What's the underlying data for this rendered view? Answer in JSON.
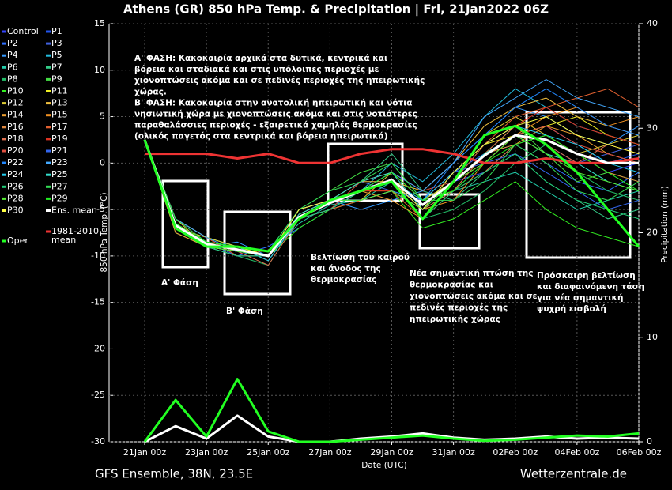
{
  "chart_data": {
    "type": "line",
    "title": "Athens  (GR)  850 hPa Temp. & Precipitation | Fri, 21Jan2022 06Z",
    "footer_left": "GFS Ensemble, 38N, 23.5E",
    "footer_right": "Wetterzentrale.de",
    "ylabel": "850 hPa Temp. (°C)",
    "y2label": "Precipitation (mm)",
    "xlabel": "Date (UTC)",
    "xlim": [
      0,
      16
    ],
    "xticks": [
      {
        "value": 0,
        "label": "21Jan 00z"
      },
      {
        "value": 2,
        "label": "23Jan 00z"
      },
      {
        "value": 4,
        "label": "25Jan 00z"
      },
      {
        "value": 6,
        "label": "27Jan 00z"
      },
      {
        "value": 8,
        "label": "29Jan 00z"
      },
      {
        "value": 10,
        "label": "31Jan 00z"
      },
      {
        "value": 12,
        "label": "02Feb 00z"
      },
      {
        "value": 14,
        "label": "04Feb 00z"
      },
      {
        "value": 16,
        "label": "06Feb 00z"
      }
    ],
    "ylim": [
      -30,
      15
    ],
    "yticks": [
      15,
      10,
      5,
      0,
      -5,
      -10,
      -15,
      -20,
      -25,
      -30
    ],
    "y2lim": [
      0,
      40
    ],
    "y2ticks": [
      40,
      30,
      20,
      10,
      0
    ],
    "grid": true,
    "x": [
      0,
      1,
      2,
      3,
      4,
      5,
      6,
      7,
      8,
      9,
      10,
      11,
      12,
      13,
      14,
      15,
      16
    ],
    "series": [
      {
        "name": "Control",
        "color": "#3344ff",
        "values": [
          2.5,
          -7,
          -9,
          -9.5,
          -10,
          -6,
          -5,
          -4,
          -3,
          -5,
          -2,
          -1,
          2,
          3,
          1,
          -1,
          0
        ]
      },
      {
        "name": "P1",
        "color": "#2255ee",
        "values": [
          2.5,
          -6,
          -8,
          -9,
          -10,
          -5,
          -4,
          -3,
          -2,
          -6,
          -3,
          0,
          3,
          4,
          2,
          0,
          1
        ]
      },
      {
        "name": "P2",
        "color": "#3070ff",
        "values": [
          2.5,
          -7,
          -8.5,
          -10,
          -9,
          -7,
          -5,
          -3,
          -1,
          -4,
          -1,
          1,
          2,
          0,
          -2,
          -3,
          -1
        ]
      },
      {
        "name": "P3",
        "color": "#4060dd",
        "values": [
          2.5,
          -6.5,
          -9,
          -9,
          -10.5,
          -6,
          -4,
          -2,
          -3,
          -5,
          -2,
          2,
          4,
          2,
          0,
          1,
          2
        ]
      },
      {
        "name": "P4",
        "color": "#3399ff",
        "values": [
          2.5,
          -7,
          -9,
          -8.5,
          -10,
          -5,
          -4,
          -5,
          -4,
          -3,
          0,
          3,
          6,
          5,
          3,
          2,
          4
        ]
      },
      {
        "name": "P5",
        "color": "#22bbdd",
        "values": [
          2.5,
          -6,
          -8,
          -9,
          -9.5,
          -6,
          -5,
          -3,
          0,
          -2,
          1,
          5,
          8,
          6,
          4,
          3,
          2
        ]
      },
      {
        "name": "P6",
        "color": "#22ccaa",
        "values": [
          2.5,
          -7.5,
          -9,
          -9.5,
          -10,
          -6.5,
          -4.5,
          -4,
          -2,
          -5,
          -3,
          -2,
          -1,
          -3,
          -5,
          -4,
          -3
        ]
      },
      {
        "name": "P7",
        "color": "#33cc88",
        "values": [
          2.5,
          -6.5,
          -8.5,
          -9,
          -10,
          -5.5,
          -4,
          -2,
          1,
          -3,
          -4,
          -1,
          1,
          -2,
          -4,
          -6,
          -5
        ]
      },
      {
        "name": "P8",
        "color": "#22bb66",
        "values": [
          2.5,
          -7,
          -9,
          -10,
          -11,
          -6,
          -4,
          -3,
          -2,
          -6,
          -5,
          -3,
          0,
          2,
          -1,
          -3,
          -4
        ]
      },
      {
        "name": "P9",
        "color": "#44dd44",
        "values": [
          2.5,
          -6,
          -8,
          -9,
          -10,
          -5,
          -3,
          -1,
          0,
          -4,
          -2,
          1,
          4,
          1,
          -2,
          -1,
          -2
        ]
      },
      {
        "name": "P10",
        "color": "#33ee22",
        "values": [
          2.5,
          -7,
          -9,
          -9.5,
          -10,
          -7,
          -5,
          -4,
          -3,
          -7,
          -6,
          -4,
          -2,
          -5,
          -7,
          -8,
          -9
        ]
      },
      {
        "name": "P11",
        "color": "#eeee22",
        "values": [
          2.5,
          -6.5,
          -8.5,
          -9,
          -10,
          -6,
          -4,
          -3,
          -2,
          -5,
          -1,
          2,
          3,
          4,
          5,
          3,
          2
        ]
      },
      {
        "name": "P12",
        "color": "#ddcc33",
        "values": [
          2.5,
          -7,
          -8,
          -9,
          -10.5,
          -6,
          -5,
          -4,
          -1,
          -4,
          -2,
          3,
          5,
          3,
          1,
          2,
          3
        ]
      },
      {
        "name": "P13",
        "color": "#f0c040",
        "values": [
          2.5,
          -6,
          -9,
          -10,
          -10,
          -5,
          -4,
          -2,
          -2,
          -3,
          0,
          4,
          6,
          7,
          5,
          4,
          3
        ]
      },
      {
        "name": "P14",
        "color": "#f0a030",
        "values": [
          2.5,
          -7.5,
          -9,
          -9,
          -10,
          -6,
          -4,
          -3,
          -4,
          -6,
          -3,
          1,
          2,
          4,
          3,
          1,
          0
        ]
      },
      {
        "name": "P15",
        "color": "#f09020",
        "values": [
          2.5,
          -6.5,
          -8.5,
          -9.5,
          -9.5,
          -6,
          -5,
          -3,
          -3,
          -5,
          -4,
          0,
          3,
          5,
          6,
          4,
          5
        ]
      },
      {
        "name": "P16",
        "color": "#e08840",
        "values": [
          2.5,
          -7,
          -9,
          -9,
          -10,
          -5,
          -4,
          -2,
          -1,
          -4,
          -3,
          -1,
          2,
          3,
          1,
          -1,
          -2
        ]
      },
      {
        "name": "P17",
        "color": "#e06030",
        "values": [
          2.5,
          -6,
          -8,
          -10,
          -10,
          -6,
          -5,
          -4,
          -3,
          -6,
          -2,
          2,
          5,
          6,
          7,
          8,
          6
        ]
      },
      {
        "name": "P18",
        "color": "#e07050",
        "values": [
          2.5,
          -7,
          -9,
          -9.5,
          -11,
          -6,
          -4,
          -3,
          -2,
          -5,
          -3,
          1,
          4,
          2,
          0,
          2,
          1
        ]
      },
      {
        "name": "P19",
        "color": "#dd3322",
        "values": [
          2.5,
          -6.5,
          -8.5,
          -9,
          -10,
          -5.5,
          -4,
          -3,
          -3,
          -4,
          -1,
          2,
          4,
          6,
          4,
          3,
          2
        ]
      },
      {
        "name": "P20",
        "color": "#e05040",
        "values": [
          2.5,
          -7,
          -8.5,
          -9,
          -10,
          -6,
          -5,
          -2,
          -1,
          -3,
          -2,
          0,
          3,
          4,
          2,
          1,
          0
        ]
      },
      {
        "name": "P21",
        "color": "#3366ee",
        "values": [
          2.5,
          -6.5,
          -9,
          -10,
          -10,
          -6,
          -4,
          -3,
          -2,
          -5,
          -1,
          0,
          1,
          -1,
          -3,
          -5,
          -4
        ]
      },
      {
        "name": "P22",
        "color": "#2288ff",
        "values": [
          2.5,
          -7,
          -9,
          -9,
          -9.5,
          -5,
          -4,
          -4,
          -3,
          -4,
          0,
          3,
          6,
          8,
          6,
          4,
          3
        ]
      },
      {
        "name": "P23",
        "color": "#44aaff",
        "values": [
          2.5,
          -6,
          -8,
          -9.5,
          -10,
          -6,
          -5,
          -3,
          -1,
          -3,
          0,
          5,
          7,
          9,
          7,
          6,
          5
        ]
      },
      {
        "name": "P24",
        "color": "#22ccee",
        "values": [
          2.5,
          -7,
          -8.5,
          -9,
          -10.5,
          -6,
          -4,
          -3,
          -2,
          -4,
          -1,
          2,
          4,
          3,
          2,
          0,
          -1
        ]
      },
      {
        "name": "P25",
        "color": "#33ddcc",
        "values": [
          2.5,
          -6.5,
          -9,
          -9.5,
          -10,
          -5.5,
          -4,
          -2,
          -1,
          -5,
          -2,
          1,
          3,
          1,
          0,
          -2,
          -3
        ]
      },
      {
        "name": "P26",
        "color": "#22cc77",
        "values": [
          2.5,
          -7,
          -9,
          -10,
          -10,
          -6,
          -5,
          -3,
          -2,
          -6,
          -3,
          -1,
          1,
          -2,
          -4,
          -5,
          -6
        ]
      },
      {
        "name": "P27",
        "color": "#33dd55",
        "values": [
          2.5,
          -6,
          -8.5,
          -9,
          -9.5,
          -5,
          -3,
          -2,
          0,
          -4,
          -4,
          -2,
          2,
          0,
          -3,
          -4,
          -2
        ]
      },
      {
        "name": "P28",
        "color": "#55ee33",
        "values": [
          2.5,
          -7,
          -9,
          -9.5,
          -10,
          -6,
          -4,
          -4,
          -3,
          -5,
          -2,
          0,
          3,
          1,
          -1,
          -2,
          -3
        ]
      },
      {
        "name": "P29",
        "color": "#22ee22",
        "values": [
          2.5,
          -6.5,
          -8.5,
          -9,
          -10,
          -6,
          -4,
          -3,
          -1,
          -4,
          -3,
          0,
          2,
          3,
          1,
          -1,
          -3
        ]
      },
      {
        "name": "P30",
        "color": "#ffff44",
        "values": [
          2.5,
          -7,
          -9,
          -9,
          -10,
          -5,
          -4,
          -3,
          -2,
          -5,
          -1,
          2,
          4,
          5,
          3,
          2,
          1
        ]
      },
      {
        "name": "Ens. mean",
        "color": "#ffffff",
        "width": 3,
        "values": [
          2.5,
          -6.7,
          -8.7,
          -9.3,
          -10,
          -5.8,
          -4.3,
          -3,
          -1.8,
          -4.5,
          -2,
          0.8,
          3,
          2.5,
          1,
          0,
          0
        ],
        "precip": [
          0,
          1.5,
          0.3,
          2.5,
          0.5,
          0,
          0,
          0.3,
          0.5,
          0.8,
          0.4,
          0.2,
          0.3,
          0.5,
          0.3,
          0.4,
          0.3
        ]
      },
      {
        "name": "Oper",
        "color": "#22ff22",
        "width": 3,
        "values": [
          2.5,
          -7,
          -9,
          -9,
          -9.5,
          -6,
          -4,
          -3,
          -2,
          -6,
          -2,
          3,
          4,
          2,
          -1,
          -5,
          -9
        ],
        "precip": [
          0,
          4,
          0.5,
          6,
          1,
          0,
          0,
          0.2,
          0.4,
          0.6,
          0.3,
          0.1,
          0.2,
          0.4,
          0.6,
          0.5,
          0.8
        ]
      }
    ],
    "climate": {
      "name_lines": [
        "1981-2010",
        "mean"
      ],
      "color": "#ee3333",
      "values": [
        1,
        1,
        1,
        0.5,
        1,
        0,
        0,
        1,
        1.5,
        1.5,
        1,
        0,
        0,
        0.5,
        0,
        0,
        0.5
      ]
    },
    "annotations": [
      {
        "lines": [
          "Α' ΦΑΣΗ: Κακοκαιρία αρχικά στα δυτικά, κεντρικά και",
          "βόρεια και σταδιακά και στις υπόλοιπες περιοχές με",
          "χιονοπτώσεις ακόμα και σε πεδινές περιοχές της ηπειρωτικής",
          "χώρας.",
          "Β' ΦΑΣΗ: Κακοκαιρία στην ανατολική ηπειρωτική και νότια",
          "νησιωτική χώρα με χιονοπτώσεις ακόμα και στις νοτιότερες",
          "παραθαλάσσιες περιοχές - εξαιρετικά χαμηλές θερμοκρασίες",
          "(ολικός παγετός στα κεντρικά και βόρεια ηπειρωτικά)"
        ]
      },
      {
        "lines": [
          "Α' Φάση"
        ]
      },
      {
        "lines": [
          "Β' Φάση"
        ]
      },
      {
        "lines": [
          "Βελτίωση του καιρού",
          "και άνοδος της",
          "θερμοκρασίας"
        ]
      },
      {
        "lines": [
          "Νέα σημαντική πτώση της",
          "θερμοκρασίας και",
          "χιονοπτώσεις ακόμα και σε",
          "πεδινές περιοχές της",
          "ηπειρωτικής χώρας"
        ]
      },
      {
        "lines": [
          "Πρόσκαιρη βελτίωση",
          "και διαφαινόμενη τάση",
          "για νέα σημαντική",
          "ψυχρή εισβολή"
        ]
      }
    ]
  }
}
